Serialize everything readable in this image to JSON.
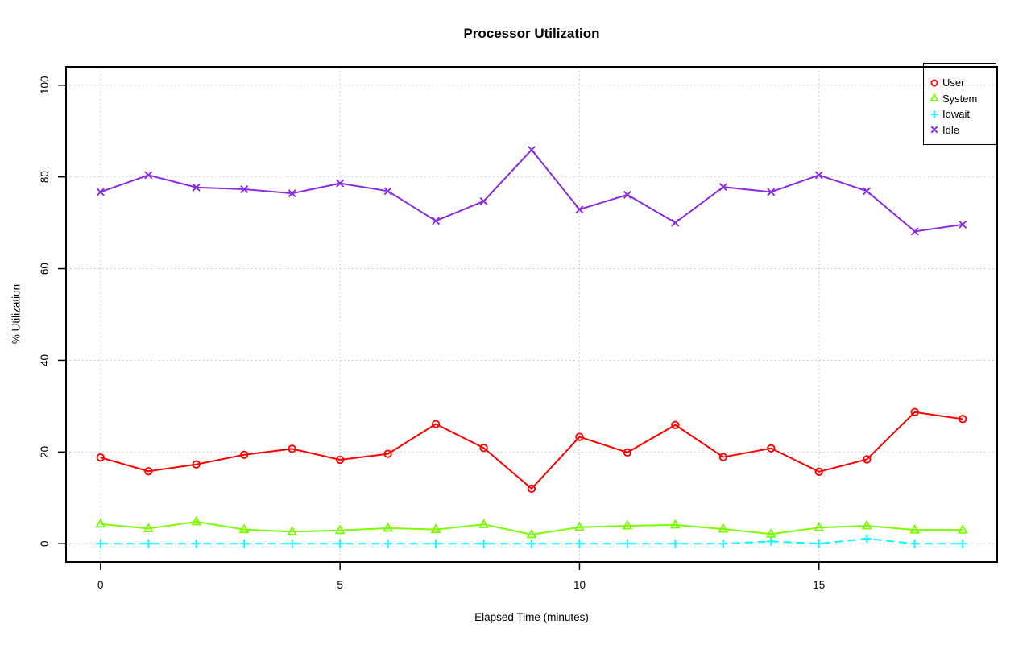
{
  "chart_data": {
    "type": "line",
    "title": "Processor Utilization",
    "xlabel": "Elapsed Time (minutes)",
    "ylabel": "% Utilization",
    "x": [
      0,
      1,
      2,
      3,
      4,
      5,
      6,
      7,
      8,
      9,
      10,
      11,
      12,
      13,
      14,
      15,
      16,
      17,
      18
    ],
    "xticks": [
      0,
      5,
      10,
      15
    ],
    "yticks": [
      0,
      20,
      40,
      60,
      80,
      100
    ],
    "xlim": [
      -0.72,
      18.72
    ],
    "ylim": [
      -4,
      104
    ],
    "grid": {
      "show": true,
      "style": "dotted",
      "color": "#c4c4c4"
    },
    "axis_color": "#000000",
    "legend_position": "top-right",
    "series": [
      {
        "name": "User",
        "color": "#ff0000",
        "marker": "circle",
        "linestyle": "solid",
        "values": [
          18.8,
          15.8,
          17.3,
          19.4,
          20.7,
          18.3,
          19.6,
          26.1,
          20.9,
          12.0,
          23.3,
          19.9,
          25.9,
          18.9,
          20.8,
          15.7,
          18.4,
          28.7,
          27.2
        ]
      },
      {
        "name": "System",
        "color": "#7cfc00",
        "marker": "triangle",
        "linestyle": "solid",
        "values": [
          4.3,
          3.3,
          4.8,
          3.1,
          2.6,
          2.9,
          3.4,
          3.1,
          4.2,
          2.0,
          3.6,
          3.9,
          4.1,
          3.2,
          2.1,
          3.5,
          3.9,
          3.0,
          3.0
        ]
      },
      {
        "name": "Iowait",
        "color": "#00ffff",
        "marker": "plus",
        "linestyle": "dashed",
        "values": [
          0,
          0,
          0,
          0,
          0,
          0,
          0,
          0,
          0,
          0,
          0,
          0,
          0,
          0,
          0.5,
          0,
          1.1,
          0,
          0
        ]
      },
      {
        "name": "Idle",
        "color": "#8a2be2",
        "marker": "x",
        "linestyle": "solid",
        "values": [
          76.7,
          80.4,
          77.7,
          77.3,
          76.4,
          78.6,
          76.9,
          70.4,
          74.7,
          85.9,
          72.9,
          76.1,
          70.0,
          77.8,
          76.7,
          80.4,
          76.9,
          68.1,
          69.6
        ]
      }
    ]
  }
}
